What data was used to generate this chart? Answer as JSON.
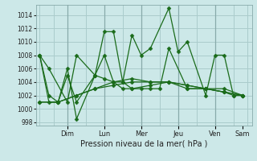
{
  "xlabel": "Pression niveau de la mer( hPa )",
  "bg_color": "#cce8e8",
  "grid_color": "#aacccc",
  "line_color": "#1a6b1a",
  "ylim": [
    997.5,
    1015.5
  ],
  "yticks": [
    998,
    1000,
    1002,
    1004,
    1006,
    1008,
    1010,
    1012,
    1014
  ],
  "day_labels": [
    "Dim",
    "Lun",
    "Mer",
    "Jeu",
    "Ven",
    "Sam"
  ],
  "series": [
    {
      "x": [
        0,
        0.5,
        1.5,
        2,
        3,
        3.5,
        4,
        4.5,
        5,
        5.5,
        6,
        7,
        7.5,
        8,
        9,
        9.5,
        10,
        10.5,
        11
      ],
      "y": [
        1008,
        1006,
        1001,
        1008,
        1005,
        1011.5,
        1011.5,
        1004,
        1011,
        1008,
        1009,
        1015,
        1008.5,
        1010,
        1002,
        1008,
        1008,
        1002,
        1002
      ]
    },
    {
      "x": [
        0,
        0.5,
        1,
        1.5,
        2,
        3,
        3.5,
        4,
        4.5,
        5,
        5.5,
        6,
        6.5,
        7,
        8,
        9,
        10,
        10.5,
        11
      ],
      "y": [
        1008,
        1002,
        1001,
        1006,
        998.5,
        1005,
        1008,
        1004,
        1004,
        1003,
        1003,
        1003,
        1003,
        1009,
        1003,
        1003,
        1002.5,
        1002,
        1002
      ]
    },
    {
      "x": [
        0,
        0.5,
        1,
        1.5,
        2,
        3,
        3.5,
        4,
        4.5,
        5,
        6,
        7,
        8,
        9,
        10,
        11
      ],
      "y": [
        1008,
        1001,
        1001,
        1005,
        1001,
        1005,
        1004.5,
        1004,
        1003,
        1003,
        1003.5,
        1004,
        1003,
        1003,
        1003,
        1002
      ]
    },
    {
      "x": [
        0,
        1,
        2,
        3,
        4,
        5,
        6,
        7,
        8,
        9,
        10,
        11
      ],
      "y": [
        1001,
        1001,
        1002,
        1003,
        1004,
        1004.5,
        1004,
        1004,
        1003.5,
        1003,
        1002.5,
        1002
      ]
    },
    {
      "x": [
        0,
        1,
        2,
        3,
        4,
        5,
        6,
        7,
        8,
        9,
        10,
        11
      ],
      "y": [
        1001,
        1001,
        1002,
        1003,
        1003.5,
        1004,
        1004,
        1004,
        1003.5,
        1003,
        1002.5,
        1002
      ]
    }
  ],
  "day_x": [
    1.5,
    3.5,
    5.5,
    7.5,
    9.5,
    11
  ],
  "vline_x": [
    1.5,
    3.5,
    5.5,
    7.5,
    9.5
  ],
  "minor_x": [
    0,
    0.75,
    1.5,
    2.5,
    3.5,
    4.5,
    5.5,
    6.5,
    7.5,
    8.5,
    9.5,
    10.5,
    11.25
  ],
  "xlim": [
    -0.2,
    11.5
  ]
}
